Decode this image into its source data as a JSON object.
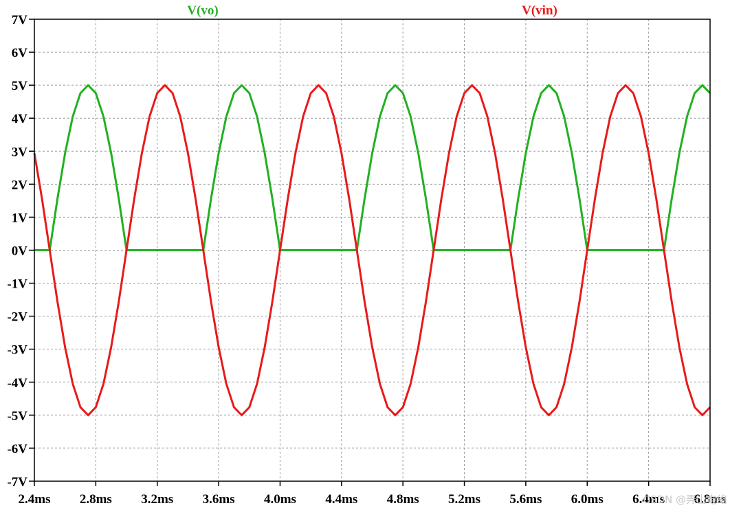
{
  "chart_data": {
    "type": "line",
    "title": "",
    "xlabel": "",
    "ylabel": "",
    "xlim": [
      2.4,
      6.8
    ],
    "ylim": [
      -7,
      7
    ],
    "x_unit": "ms",
    "y_unit": "V",
    "grid": true,
    "x_ticks": [
      "2.4ms",
      "2.8ms",
      "3.2ms",
      "3.6ms",
      "4.0ms",
      "4.4ms",
      "4.8ms",
      "5.2ms",
      "5.6ms",
      "6.0ms",
      "6.4ms",
      "6.8ms"
    ],
    "x_tick_values": [
      2.4,
      2.8,
      3.2,
      3.6,
      4.0,
      4.4,
      4.8,
      5.2,
      5.6,
      6.0,
      6.4,
      6.8
    ],
    "y_ticks": [
      "7V",
      "6V",
      "5V",
      "4V",
      "3V",
      "2V",
      "1V",
      "0V",
      "-1V",
      "-2V",
      "-3V",
      "-4V",
      "-5V",
      "-6V",
      "-7V"
    ],
    "y_tick_values": [
      7,
      6,
      5,
      4,
      3,
      2,
      1,
      0,
      -1,
      -2,
      -3,
      -4,
      -5,
      -6,
      -7
    ],
    "series": [
      {
        "name": "V(vo)",
        "color": "#22b022",
        "x": [
          2.4,
          2.5,
          2.55,
          2.6,
          2.65,
          2.7,
          2.75,
          2.8,
          2.85,
          2.9,
          2.95,
          3.0,
          3.1,
          3.2,
          3.3,
          3.4,
          3.5,
          3.55,
          3.6,
          3.65,
          3.7,
          3.75,
          3.8,
          3.85,
          3.9,
          3.95,
          4.0,
          4.1,
          4.2,
          4.3,
          4.4,
          4.5,
          4.55,
          4.6,
          4.65,
          4.7,
          4.75,
          4.8,
          4.85,
          4.9,
          4.95,
          5.0,
          5.1,
          5.2,
          5.3,
          5.4,
          5.5,
          5.55,
          5.6,
          5.65,
          5.7,
          5.75,
          5.8,
          5.85,
          5.9,
          5.95,
          6.0,
          6.1,
          6.2,
          6.3,
          6.4,
          6.5,
          6.55,
          6.6,
          6.65,
          6.7,
          6.75,
          6.8
        ],
        "y": [
          0,
          0,
          1.55,
          2.94,
          4.05,
          4.76,
          5.0,
          4.76,
          4.05,
          2.94,
          1.55,
          0,
          0,
          0,
          0,
          0,
          0,
          1.55,
          2.94,
          4.05,
          4.76,
          5.0,
          4.76,
          4.05,
          2.94,
          1.55,
          0,
          0,
          0,
          0,
          0,
          0,
          1.55,
          2.94,
          4.05,
          4.76,
          5.0,
          4.76,
          4.05,
          2.94,
          1.55,
          0,
          0,
          0,
          0,
          0,
          0,
          1.55,
          2.94,
          4.05,
          4.76,
          5.0,
          4.76,
          4.05,
          2.94,
          1.55,
          0,
          0,
          0,
          0,
          0,
          0,
          1.55,
          2.94,
          4.05,
          4.76,
          5.0,
          4.76
        ]
      },
      {
        "name": "V(vin)",
        "color": "#e81a1a",
        "x": [
          2.4,
          2.45,
          2.5,
          2.55,
          2.6,
          2.65,
          2.7,
          2.75,
          2.8,
          2.85,
          2.9,
          2.95,
          3.0,
          3.05,
          3.1,
          3.15,
          3.2,
          3.25,
          3.3,
          3.35,
          3.4,
          3.45,
          3.5,
          3.55,
          3.6,
          3.65,
          3.7,
          3.75,
          3.8,
          3.85,
          3.9,
          3.95,
          4.0,
          4.05,
          4.1,
          4.15,
          4.2,
          4.25,
          4.3,
          4.35,
          4.4,
          4.45,
          4.5,
          4.55,
          4.6,
          4.65,
          4.7,
          4.75,
          4.8,
          4.85,
          4.9,
          4.95,
          5.0,
          5.05,
          5.1,
          5.15,
          5.2,
          5.25,
          5.3,
          5.35,
          5.4,
          5.45,
          5.5,
          5.55,
          5.6,
          5.65,
          5.7,
          5.75,
          5.8,
          5.85,
          5.9,
          5.95,
          6.0,
          6.05,
          6.1,
          6.15,
          6.2,
          6.25,
          6.3,
          6.35,
          6.4,
          6.45,
          6.5,
          6.55,
          6.6,
          6.65,
          6.7,
          6.75,
          6.8
        ],
        "y": [
          2.94,
          1.55,
          0,
          -1.55,
          -2.94,
          -4.05,
          -4.76,
          -5.0,
          -4.76,
          -4.05,
          -2.94,
          -1.55,
          0,
          1.55,
          2.94,
          4.05,
          4.76,
          5.0,
          4.76,
          4.05,
          2.94,
          1.55,
          0,
          -1.55,
          -2.94,
          -4.05,
          -4.76,
          -5.0,
          -4.76,
          -4.05,
          -2.94,
          -1.55,
          0,
          1.55,
          2.94,
          4.05,
          4.76,
          5.0,
          4.76,
          4.05,
          2.94,
          1.55,
          0,
          -1.55,
          -2.94,
          -4.05,
          -4.76,
          -5.0,
          -4.76,
          -4.05,
          -2.94,
          -1.55,
          0,
          1.55,
          2.94,
          4.05,
          4.76,
          5.0,
          4.76,
          4.05,
          2.94,
          1.55,
          0,
          -1.55,
          -2.94,
          -4.05,
          -4.76,
          -5.0,
          -4.76,
          -4.05,
          -2.94,
          -1.55,
          0,
          1.55,
          2.94,
          4.05,
          4.76,
          5.0,
          4.76,
          4.05,
          2.94,
          1.55,
          0,
          -1.55,
          -2.94,
          -4.05,
          -4.76,
          -5.0,
          -4.76
        ]
      }
    ]
  },
  "watermark": "CSDN @弄山电络"
}
